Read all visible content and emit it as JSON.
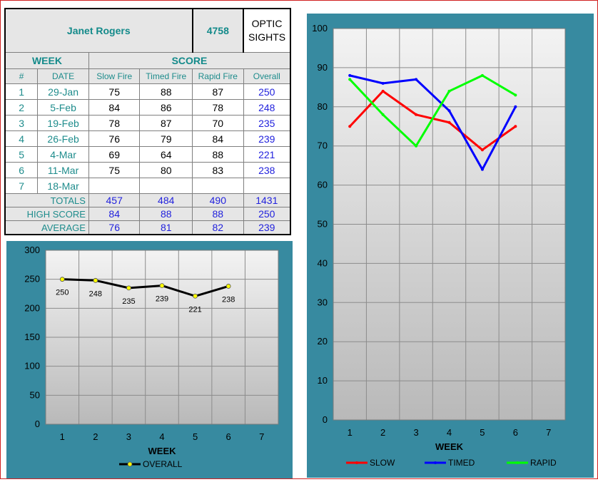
{
  "header": {
    "shooter_name": "Janet Rogers",
    "shooter_id": "4758",
    "sights_line1": "OPTIC",
    "sights_line2": "SIGHTS"
  },
  "table": {
    "week_label": "WEEK",
    "score_label": "SCORE",
    "columns": [
      "#",
      "DATE",
      "Slow Fire",
      "Timed Fire",
      "Rapid Fire",
      "Overall"
    ],
    "rows": [
      {
        "num": "1",
        "date": "29-Jan",
        "slow": "75",
        "timed": "88",
        "rapid": "87",
        "overall": "250"
      },
      {
        "num": "2",
        "date": "5-Feb",
        "slow": "84",
        "timed": "86",
        "rapid": "78",
        "overall": "248"
      },
      {
        "num": "3",
        "date": "19-Feb",
        "slow": "78",
        "timed": "87",
        "rapid": "70",
        "overall": "235"
      },
      {
        "num": "4",
        "date": "26-Feb",
        "slow": "76",
        "timed": "79",
        "rapid": "84",
        "overall": "239"
      },
      {
        "num": "5",
        "date": "4-Mar",
        "slow": "69",
        "timed": "64",
        "rapid": "88",
        "overall": "221"
      },
      {
        "num": "6",
        "date": "11-Mar",
        "slow": "75",
        "timed": "80",
        "rapid": "83",
        "overall": "238"
      },
      {
        "num": "7",
        "date": "18-Mar",
        "slow": "",
        "timed": "",
        "rapid": "",
        "overall": ""
      }
    ],
    "totals": {
      "label": "TOTALS",
      "slow": "457",
      "timed": "484",
      "rapid": "490",
      "overall": "1431"
    },
    "high": {
      "label": "HIGH SCORE",
      "slow": "84",
      "timed": "88",
      "rapid": "88",
      "overall": "250"
    },
    "average": {
      "label": "AVERAGE",
      "slow": "76",
      "timed": "81",
      "rapid": "82",
      "overall": "239"
    }
  },
  "chart_data": [
    {
      "type": "line",
      "xlabel": "WEEK",
      "ylabel": "",
      "categories": [
        "1",
        "2",
        "3",
        "4",
        "5",
        "6",
        "7"
      ],
      "ylim": [
        0,
        300
      ],
      "yticks": [
        0,
        50,
        100,
        150,
        200,
        250,
        300
      ],
      "grid": true,
      "legend": "bottom",
      "series": [
        {
          "name": "OVERALL",
          "color": "#000000",
          "marker_color": "#ffff00",
          "values": [
            250,
            248,
            235,
            239,
            221,
            238,
            null
          ]
        }
      ],
      "data_labels": [
        "250",
        "248",
        "235",
        "239",
        "221",
        "238"
      ]
    },
    {
      "type": "line",
      "xlabel": "WEEK",
      "ylabel": "",
      "categories": [
        "1",
        "2",
        "3",
        "4",
        "5",
        "6",
        "7"
      ],
      "ylim": [
        0,
        100
      ],
      "yticks": [
        0,
        10,
        20,
        30,
        40,
        50,
        60,
        70,
        80,
        90,
        100
      ],
      "grid": true,
      "legend": "bottom",
      "series": [
        {
          "name": "SLOW",
          "color": "#ff0000",
          "values": [
            75,
            84,
            78,
            76,
            69,
            75,
            null
          ]
        },
        {
          "name": "TIMED",
          "color": "#0000ff",
          "values": [
            88,
            86,
            87,
            79,
            64,
            80,
            null
          ]
        },
        {
          "name": "RAPID",
          "color": "#00ff00",
          "values": [
            87,
            78,
            70,
            84,
            88,
            83,
            null
          ]
        }
      ]
    }
  ]
}
